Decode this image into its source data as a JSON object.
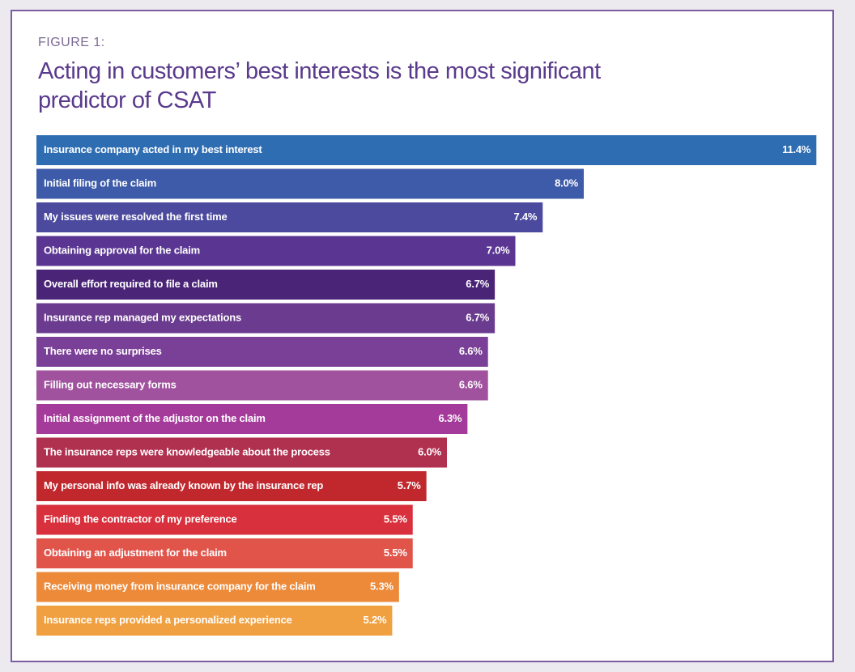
{
  "chart_data": {
    "type": "bar",
    "orientation": "horizontal",
    "subtitle": "FIGURE 1:",
    "title": "Acting in customers’ best interests is the most significant predictor of CSAT",
    "categories": [
      "Insurance company acted in my best interest",
      "Initial filing of the claim",
      "My issues were resolved the first time",
      "Obtaining approval for the claim",
      "Overall effort required to file a claim",
      "Insurance rep managed my expectations",
      "There were no surprises",
      "Filling out necessary forms",
      "Initial assignment of the adjustor on the claim",
      "The insurance reps were knowledgeable about the process",
      "My personal info was already known by the insurance rep",
      "Finding the contractor of my preference",
      "Obtaining an adjustment for the claim",
      "Receiving money from insurance company for the claim",
      "Insurance reps provided a personalized experience"
    ],
    "values": [
      11.4,
      8.0,
      7.4,
      7.0,
      6.7,
      6.7,
      6.6,
      6.6,
      6.3,
      6.0,
      5.7,
      5.5,
      5.5,
      5.3,
      5.2
    ],
    "value_labels": [
      "11.4%",
      "8.0%",
      "7.4%",
      "7.0%",
      "6.7%",
      "6.7%",
      "6.6%",
      "6.6%",
      "6.3%",
      "6.0%",
      "5.7%",
      "5.5%",
      "5.5%",
      "5.3%",
      "5.2%"
    ],
    "colors": [
      "#2f6db3",
      "#3d5ba8",
      "#4c4a9f",
      "#5a3692",
      "#4a2577",
      "#6a3b8e",
      "#7a3f96",
      "#a0529e",
      "#a43a9a",
      "#b0304f",
      "#c0282e",
      "#d8303c",
      "#e0544a",
      "#ec8a3a",
      "#f0a040"
    ]
  }
}
